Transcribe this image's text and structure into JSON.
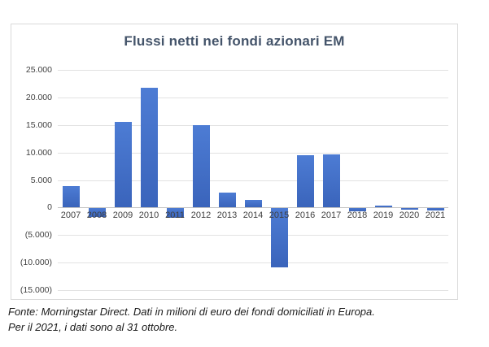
{
  "chart_data": {
    "type": "bar",
    "title": "Flussi netti nei fondi azionari EM",
    "categories": [
      "2007",
      "2008",
      "2009",
      "2010",
      "2011",
      "2012",
      "2013",
      "2014",
      "2015",
      "2016",
      "2017",
      "2018",
      "2019",
      "2020",
      "2021"
    ],
    "values": [
      3900,
      -1700,
      15500,
      21700,
      -1800,
      14900,
      2700,
      1400,
      -10900,
      9500,
      9700,
      -700,
      400,
      -350,
      -600
    ],
    "xlabel": "",
    "ylabel": "",
    "ylim": [
      -15000,
      25000
    ],
    "ytick_step": 5000,
    "ytick_labels": [
      "25.000",
      "20.000",
      "15.000",
      "10.000",
      "5.000",
      "0",
      "(5.000)",
      "(10.000)",
      "(15.000)"
    ],
    "grid": true,
    "legend": false,
    "units": "milioni di euro",
    "colors": {
      "bar_gradient_top": "#4d7cd4",
      "bar_gradient_bottom": "#3a64bb",
      "title": "#44546a",
      "gridline": "#e2e2e2",
      "zero_axis": "#c3c3c3",
      "tick_text": "#404040"
    }
  },
  "footer": {
    "line1": "Fonte: Morningstar Direct. Dati in milioni di euro dei fondi domiciliati in Europa.",
    "line2": "Per il 2021, i dati sono al 31 ottobre."
  }
}
